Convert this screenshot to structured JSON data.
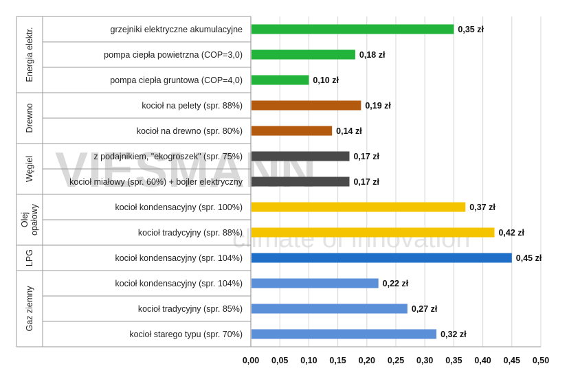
{
  "chart_data": {
    "type": "bar",
    "orientation": "horizontal",
    "groups": [
      {
        "label": "Energia elektr.",
        "lines": [
          "Energia elektr."
        ],
        "rows": [
          0,
          1,
          2
        ]
      },
      {
        "label": "Drewno",
        "lines": [
          "Drewno"
        ],
        "rows": [
          3,
          4
        ]
      },
      {
        "label": "Węgiel",
        "lines": [
          "Węgiel"
        ],
        "rows": [
          5,
          6
        ]
      },
      {
        "label": "Olej opałowy",
        "lines": [
          "Olej",
          "opałowy"
        ],
        "rows": [
          7,
          8
        ]
      },
      {
        "label": "LPG",
        "lines": [
          "LPG"
        ],
        "rows": [
          9
        ]
      },
      {
        "label": "Gaz ziemny",
        "lines": [
          "Gaz ziemny"
        ],
        "rows": [
          10,
          11,
          12
        ]
      }
    ],
    "categories": [
      "grzejniki elektryczne akumulacyjne",
      "pompa ciepła powietrzna (COP=3,0)",
      "pompa ciepła gruntowa (COP=4,0)",
      "kocioł na pelety (spr. 88%)",
      "kocioł na drewno (spr. 80%)",
      "z podajnikiem, \"ekogroszek\" (spr. 75%)",
      "kocioł miałowy (spr. 60%) + bojler elektryczny",
      "kocioł kondensacyjny (spr. 100%)",
      "kocioł tradycyjny (spr. 88%)",
      "kocioł kondensacyjny (spr. 104%)",
      "kocioł kondensacyjny (spr. 104%)",
      "kocioł tradycyjny (spr. 85%)",
      "kocioł starego typu (spr. 70%)"
    ],
    "values": [
      0.35,
      0.18,
      0.1,
      0.19,
      0.14,
      0.17,
      0.17,
      0.37,
      0.42,
      0.45,
      0.22,
      0.27,
      0.32
    ],
    "value_labels": [
      "0,35 zł",
      "0,18 zł",
      "0,10 zł",
      "0,19 zł",
      "0,14 zł",
      "0,17 zł",
      "0,17 zł",
      "0,37 zł",
      "0,42 zł",
      "0,45 zł",
      "0,22 zł",
      "0,27 zł",
      "0,32 zł"
    ],
    "bar_colors": [
      "#22b33a",
      "#22b33a",
      "#22b33a",
      "#b35a0f",
      "#b35a0f",
      "#4a4a4a",
      "#4a4a4a",
      "#f5c400",
      "#f5c400",
      "#1f6fc8",
      "#5b8fd8",
      "#5b8fd8",
      "#5b8fd8"
    ],
    "xlim": [
      0,
      0.5
    ],
    "xticks": [
      0,
      0.05,
      0.1,
      0.15,
      0.2,
      0.25,
      0.3,
      0.35,
      0.4,
      0.45,
      0.5
    ],
    "xtick_labels": [
      "0,00",
      "0,05",
      "0,10",
      "0,15",
      "0,20",
      "0,25",
      "0,30",
      "0,35",
      "0,40",
      "0,45",
      "0,50"
    ],
    "grid": true
  },
  "watermark": {
    "brand": "VIESMANN",
    "tagline": "climate of innovation"
  }
}
